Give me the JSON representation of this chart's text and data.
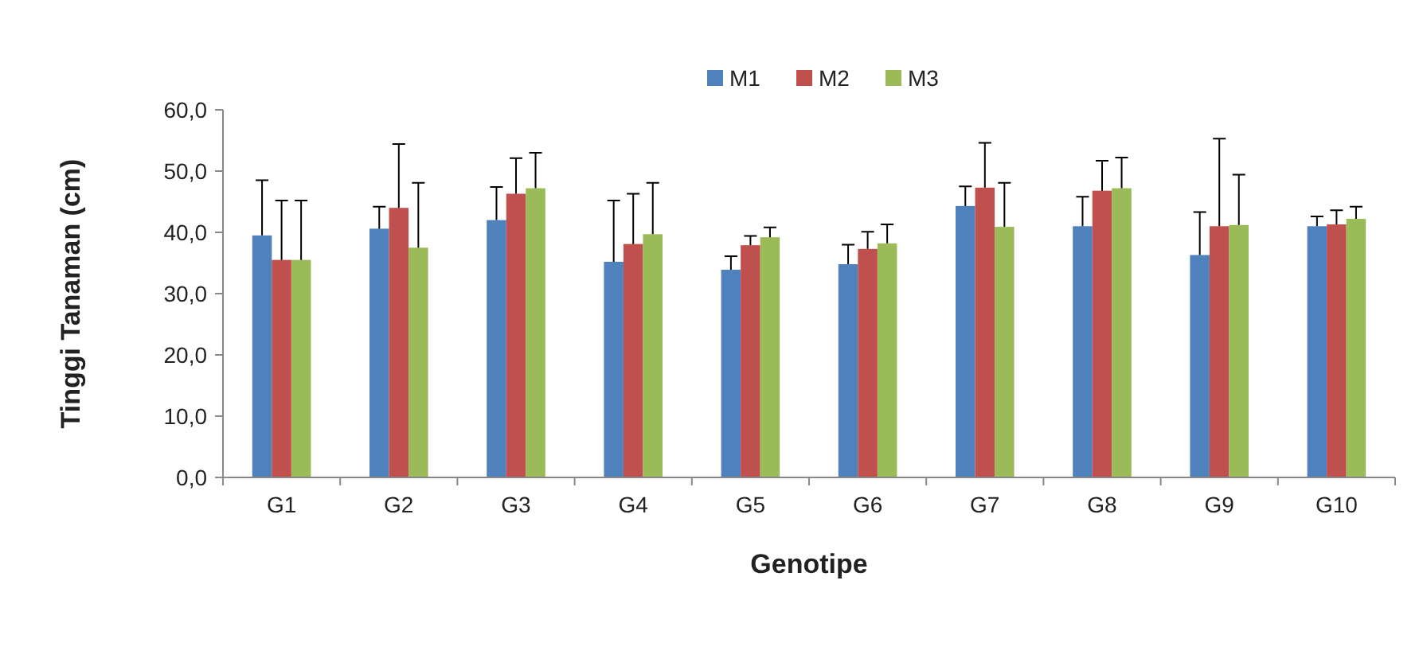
{
  "chart_data": {
    "type": "bar",
    "xlabel": "Genotipe",
    "ylabel": "Tinggi Tanaman (cm)",
    "categories": [
      "G1",
      "G2",
      "G3",
      "G4",
      "G5",
      "G6",
      "G7",
      "G8",
      "G9",
      "G10"
    ],
    "series": [
      {
        "name": "M1",
        "color": "#4f81bd",
        "values": [
          39.5,
          40.6,
          42.0,
          35.2,
          33.9,
          34.8,
          44.3,
          41.0,
          36.3,
          41.0
        ],
        "errors": [
          [
            39.5,
            48.5
          ],
          [
            40.6,
            44.2
          ],
          [
            42.0,
            47.4
          ],
          [
            35.2,
            45.2
          ],
          [
            33.9,
            36.1
          ],
          [
            34.8,
            38.0
          ],
          [
            44.3,
            47.5
          ],
          [
            41.0,
            45.8
          ],
          [
            36.3,
            43.3
          ],
          [
            41.0,
            42.6
          ]
        ]
      },
      {
        "name": "M2",
        "color": "#c0504d",
        "values": [
          35.5,
          44.0,
          46.3,
          38.1,
          37.9,
          37.3,
          47.3,
          46.8,
          41.0,
          41.3
        ],
        "errors": [
          [
            35.5,
            45.2
          ],
          [
            44.0,
            54.4
          ],
          [
            46.3,
            52.1
          ],
          [
            38.1,
            46.3
          ],
          [
            37.9,
            39.4
          ],
          [
            37.3,
            40.1
          ],
          [
            47.3,
            54.6
          ],
          [
            46.8,
            51.7
          ],
          [
            41.0,
            55.3
          ],
          [
            41.3,
            43.6
          ]
        ]
      },
      {
        "name": "M3",
        "color": "#9bbb59",
        "values": [
          35.5,
          37.5,
          47.2,
          39.7,
          39.2,
          38.2,
          40.9,
          47.2,
          41.2,
          42.2
        ],
        "errors": [
          [
            35.5,
            45.2
          ],
          [
            37.5,
            48.1
          ],
          [
            47.2,
            53.0
          ],
          [
            39.7,
            48.1
          ],
          [
            39.2,
            40.8
          ],
          [
            38.2,
            41.3
          ],
          [
            40.9,
            48.1
          ],
          [
            47.2,
            52.2
          ],
          [
            41.2,
            49.4
          ],
          [
            42.2,
            44.2
          ]
        ]
      }
    ],
    "ylim": [
      0,
      60
    ],
    "yticks": [
      {
        "value": 0,
        "label": "0,0"
      },
      {
        "value": 10,
        "label": "10,0"
      },
      {
        "value": 20,
        "label": "20,0"
      },
      {
        "value": 30,
        "label": "30,0"
      },
      {
        "value": 40,
        "label": "40,0"
      },
      {
        "value": 50,
        "label": "50,0"
      },
      {
        "value": 60,
        "label": "60,0"
      }
    ],
    "legend": "top",
    "grid": false
  }
}
